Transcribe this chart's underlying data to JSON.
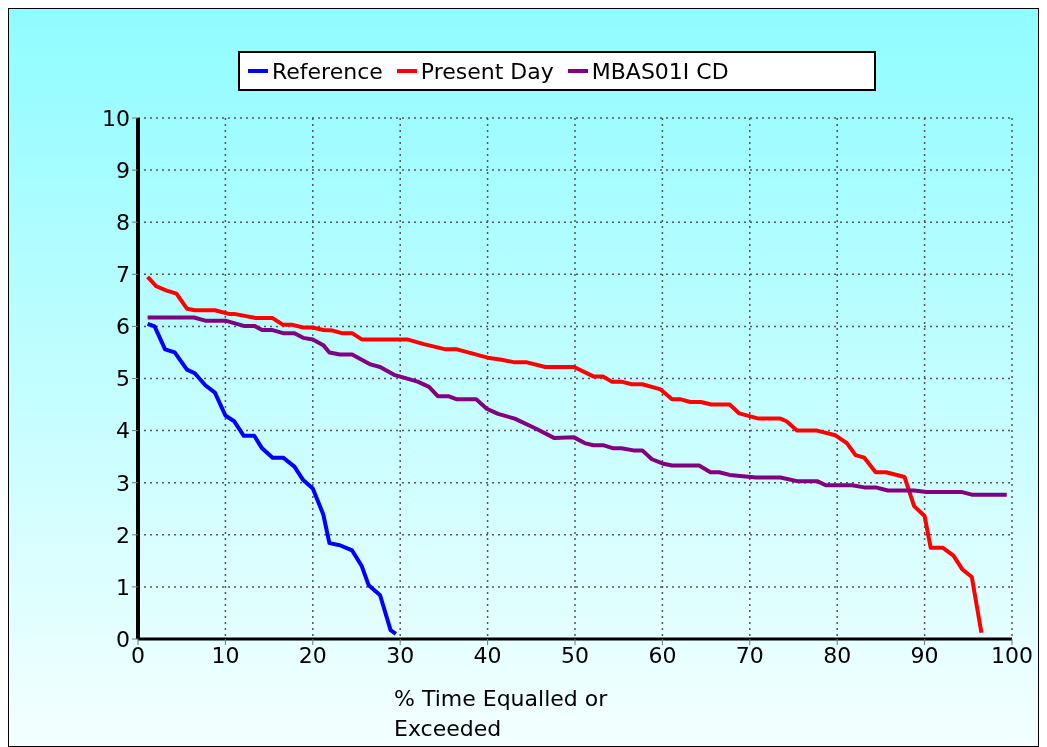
{
  "chart_data": {
    "type": "line",
    "xlabel": "% Time Equalled or Exceeded",
    "xlim": [
      0,
      100
    ],
    "xticks": [
      0,
      10,
      20,
      30,
      40,
      50,
      60,
      70,
      80,
      90,
      100
    ],
    "ylim": [
      0,
      10
    ],
    "yticks": [
      0,
      1,
      2,
      3,
      4,
      5,
      6,
      7,
      8,
      9,
      10
    ],
    "grid": true,
    "legend": "top",
    "marker": "none",
    "line_style": "solid",
    "series": [
      {
        "name": "Reference",
        "color": "#0000ff",
        "x": [
          1.1,
          1.9,
          3.1,
          4.2,
          5.6,
          6.5,
          7.7,
          8.8,
          10,
          11,
          12.1,
          13.3,
          14.2,
          15.4,
          16.6,
          17.9,
          18.9,
          20,
          21.2,
          21.9,
          23.1,
          24.5,
          25.6,
          26.4,
          27.7,
          28.9,
          29.5
        ],
        "values": [
          6.05,
          6.0,
          5.56,
          5.5,
          5.17,
          5.1,
          4.87,
          4.73,
          4.29,
          4.18,
          3.9,
          3.9,
          3.66,
          3.48,
          3.48,
          3.31,
          3.05,
          2.89,
          2.39,
          1.84,
          1.8,
          1.7,
          1.4,
          1.03,
          0.84,
          0.17,
          0.1
        ]
      },
      {
        "name": "Present Day",
        "color": "#ff0000",
        "x": [
          1.1,
          2.1,
          3.2,
          4.4,
          5.6,
          6.5,
          8.8,
          10.4,
          11,
          13.5,
          15.4,
          16.6,
          17.7,
          18.9,
          20,
          21.2,
          22.3,
          23.3,
          24.5,
          25.6,
          30.8,
          32.7,
          35.2,
          36.5,
          40,
          41.6,
          43.1,
          44.5,
          46.6,
          49.9,
          52.1,
          53.2,
          54.2,
          55.3,
          56.5,
          57.7,
          59.8,
          61.1,
          62.1,
          63.2,
          64.4,
          65.6,
          67.7,
          68.8,
          71,
          73.5,
          74.2,
          75.4,
          77.7,
          79.8,
          81.1,
          82.1,
          83.1,
          84.4,
          85.6,
          87.7,
          88.8,
          90,
          90.7,
          92.1,
          93.3,
          94.3,
          95.4,
          96.5
        ],
        "values": [
          6.95,
          6.77,
          6.69,
          6.63,
          6.34,
          6.31,
          6.31,
          6.24,
          6.24,
          6.16,
          6.16,
          6.03,
          6.03,
          5.98,
          5.98,
          5.93,
          5.92,
          5.87,
          5.87,
          5.75,
          5.75,
          5.66,
          5.56,
          5.56,
          5.4,
          5.36,
          5.31,
          5.31,
          5.22,
          5.22,
          5.04,
          5.04,
          4.94,
          4.94,
          4.89,
          4.89,
          4.79,
          4.6,
          4.6,
          4.55,
          4.55,
          4.5,
          4.5,
          4.33,
          4.23,
          4.23,
          4.18,
          4.0,
          4.0,
          3.91,
          3.76,
          3.53,
          3.48,
          3.2,
          3.2,
          3.11,
          2.55,
          2.36,
          1.75,
          1.75,
          1.6,
          1.34,
          1.19,
          0.12
        ]
      },
      {
        "name": "MBAS01I CD",
        "color": "#800080",
        "x": [
          1.1,
          6.4,
          7.7,
          10,
          12.1,
          13.3,
          14.2,
          15.4,
          16.6,
          17.9,
          18.9,
          20,
          21.2,
          21.9,
          23.1,
          24.5,
          26.6,
          27.7,
          29.3,
          32,
          33.3,
          34.3,
          35.5,
          36.5,
          38.7,
          39.9,
          41.2,
          43.1,
          45.5,
          47.6,
          49.9,
          51.1,
          52.1,
          53.2,
          54.4,
          55.3,
          56.7,
          57.7,
          58.8,
          60,
          61.1,
          64.2,
          65.5,
          66.5,
          67.7,
          70.7,
          73.5,
          75.4,
          77.7,
          78.7,
          81.7,
          83.1,
          84.4,
          85.8,
          88.8,
          90.2,
          94.3,
          95.4,
          99.4
        ],
        "values": [
          6.17,
          6.17,
          6.11,
          6.11,
          6.01,
          6.01,
          5.93,
          5.93,
          5.87,
          5.87,
          5.78,
          5.75,
          5.64,
          5.5,
          5.46,
          5.46,
          5.27,
          5.22,
          5.07,
          4.94,
          4.84,
          4.66,
          4.66,
          4.6,
          4.6,
          4.42,
          4.32,
          4.23,
          4.04,
          3.86,
          3.87,
          3.76,
          3.72,
          3.72,
          3.66,
          3.66,
          3.62,
          3.62,
          3.45,
          3.37,
          3.33,
          3.33,
          3.2,
          3.2,
          3.15,
          3.1,
          3.1,
          3.03,
          3.03,
          2.95,
          2.95,
          2.91,
          2.91,
          2.85,
          2.85,
          2.82,
          2.82,
          2.77,
          2.77
        ]
      }
    ]
  }
}
